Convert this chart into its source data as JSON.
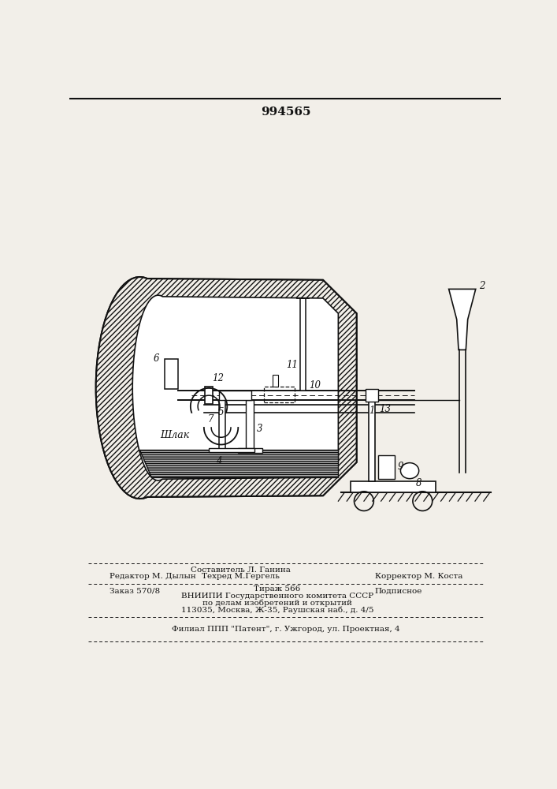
{
  "patent_number": "994565",
  "bg_color": "#f2efe9",
  "lc": "#111111",
  "slag_label": "Шлак",
  "editor_line": "Редактор М. Дылын",
  "composer_label": "Составитель Л. Ганина",
  "techred_line": "Техред М.Гергель",
  "corrector_line": "Корректор М. Коста",
  "order_line": "Заказ 570/8",
  "tirazh_line": "Тираж 566",
  "podpisnoe_line": "Подписное",
  "vniip_line1": "ВНИИПИ Государственного комитета СССР",
  "vniip_line2": "по делам изобретений и открытий",
  "vniip_line3": "113035, Москва, Ж-35, Раушская наб., д. 4/5",
  "filial_line": "Филиал ППП \"Патент\", г. Ужгород, ул. Проектная, 4"
}
